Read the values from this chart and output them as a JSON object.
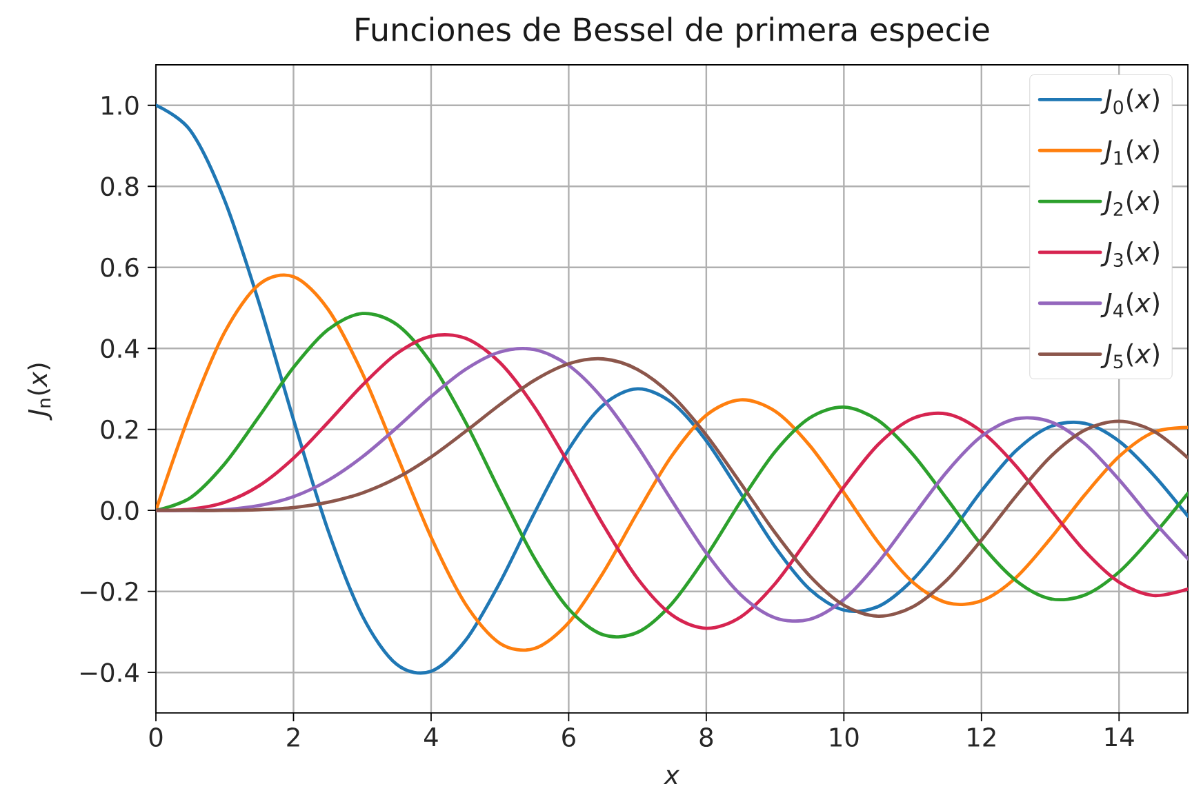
{
  "chart_data": {
    "type": "line",
    "title": "Funciones de Bessel de primera especie",
    "xlabel": "*x*",
    "ylabel": "*J*$_{n}$(*x*)",
    "x": [
      0,
      0.5,
      1,
      1.5,
      2,
      2.5,
      3,
      3.5,
      4,
      4.5,
      5,
      5.5,
      6,
      6.5,
      7,
      7.5,
      8,
      8.5,
      9,
      9.5,
      10,
      10.5,
      11,
      11.5,
      12,
      12.5,
      13,
      13.5,
      14,
      14.5,
      15
    ],
    "series": [
      {
        "name": "*J*$_{0}$(*x*)",
        "color": "#1f77b4",
        "values": [
          1.0,
          0.938,
          0.765,
          0.512,
          0.224,
          -0.048,
          -0.26,
          -0.38,
          -0.397,
          -0.321,
          -0.178,
          -0.007,
          0.151,
          0.26,
          0.3,
          0.266,
          0.172,
          0.042,
          -0.09,
          -0.194,
          -0.246,
          -0.237,
          -0.171,
          -0.068,
          0.048,
          0.147,
          0.207,
          0.215,
          0.171,
          0.088,
          -0.014
        ]
      },
      {
        "name": "*J*$_{1}$(*x*)",
        "color": "#ff7f0e",
        "values": [
          0,
          0.242,
          0.44,
          0.558,
          0.577,
          0.497,
          0.339,
          0.137,
          -0.066,
          -0.231,
          -0.328,
          -0.341,
          -0.277,
          -0.154,
          -0.005,
          0.135,
          0.235,
          0.273,
          0.245,
          0.161,
          0.044,
          -0.079,
          -0.177,
          -0.228,
          -0.223,
          -0.166,
          -0.07,
          0.038,
          0.133,
          0.193,
          0.205
        ]
      },
      {
        "name": "*J*$_{2}$(*x*)",
        "color": "#2ca02c",
        "values": [
          0,
          0.031,
          0.115,
          0.232,
          0.353,
          0.446,
          0.486,
          0.459,
          0.364,
          0.218,
          0.047,
          -0.117,
          -0.243,
          -0.307,
          -0.301,
          -0.23,
          -0.113,
          0.022,
          0.145,
          0.228,
          0.255,
          0.222,
          0.139,
          0.028,
          -0.085,
          -0.173,
          -0.218,
          -0.209,
          -0.152,
          -0.061,
          0.042
        ]
      },
      {
        "name": "*J*$_{3}$(*x*)",
        "color": "#d62450",
        "values": [
          0,
          0.003,
          0.02,
          0.061,
          0.129,
          0.217,
          0.309,
          0.387,
          0.43,
          0.425,
          0.365,
          0.256,
          0.115,
          -0.035,
          -0.168,
          -0.258,
          -0.291,
          -0.263,
          -0.181,
          -0.065,
          0.058,
          0.163,
          0.227,
          0.238,
          0.195,
          0.11,
          0.003,
          -0.1,
          -0.177,
          -0.21,
          -0.194
        ]
      },
      {
        "name": "*J*$_{4}$(*x*)",
        "color": "#9467bd",
        "values": [
          0,
          0.0,
          0.002,
          0.012,
          0.034,
          0.074,
          0.132,
          0.204,
          0.281,
          0.348,
          0.391,
          0.397,
          0.358,
          0.275,
          0.158,
          0.024,
          -0.105,
          -0.208,
          -0.265,
          -0.269,
          -0.22,
          -0.128,
          -0.015,
          0.096,
          0.183,
          0.226,
          0.219,
          0.165,
          0.076,
          -0.026,
          -0.119
        ]
      },
      {
        "name": "*J*$_{5}$(*x*)",
        "color": "#8c564b",
        "values": [
          0,
          0.0,
          0.0,
          0.002,
          0.007,
          0.02,
          0.043,
          0.08,
          0.132,
          0.195,
          0.261,
          0.321,
          0.362,
          0.374,
          0.348,
          0.284,
          0.186,
          0.067,
          -0.055,
          -0.161,
          -0.234,
          -0.261,
          -0.238,
          -0.171,
          -0.073,
          0.035,
          0.132,
          0.198,
          0.22,
          0.196,
          0.13
        ]
      }
    ],
    "xlim": [
      0,
      15
    ],
    "ylim": [
      -0.5,
      1.1
    ],
    "xticks": [
      0,
      2,
      4,
      6,
      8,
      10,
      12,
      14
    ],
    "yticks": [
      {
        "value": -0.4,
        "label": "−0.4"
      },
      {
        "value": -0.2,
        "label": "−0.2"
      },
      {
        "value": 0.0,
        "label": "0.0"
      },
      {
        "value": 0.2,
        "label": "0.2"
      },
      {
        "value": 0.4,
        "label": "0.4"
      },
      {
        "value": 0.6,
        "label": "0.6"
      },
      {
        "value": 0.8,
        "label": "0.8"
      },
      {
        "value": 1.0,
        "label": "1.0"
      }
    ],
    "grid": true,
    "legend": "top right",
    "line_style": "solid"
  }
}
